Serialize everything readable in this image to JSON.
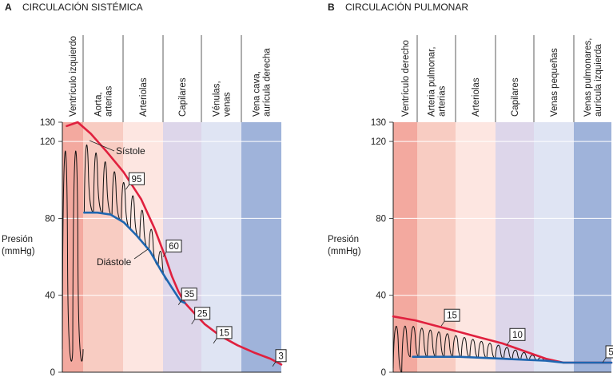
{
  "chart_data": [
    {
      "type": "line",
      "panel_letter": "A",
      "title": "CIRCULACIÓN SISTÉMICA",
      "ylabel": "Presión\n(mmHg)",
      "ylim": [
        0,
        130
      ],
      "y_ticks": [
        0,
        40,
        80,
        120,
        130
      ],
      "regions": [
        {
          "label": "Ventrículo izquierdo",
          "color": "#f3a99f"
        },
        {
          "label": "Aorta,\narterias",
          "color": "#f8ccc2"
        },
        {
          "label": "Arteriolas",
          "color": "#fde6e1"
        },
        {
          "label": "Capilares",
          "color": "#ddd6ea"
        },
        {
          "label": "Vénulas,\nvenas",
          "color": "#dfe4f3"
        },
        {
          "label": "Vena cava,\naurícula derecha",
          "color": "#9fb3da"
        }
      ],
      "curves": [
        {
          "name": "Sístole",
          "color": "#e0203e",
          "points": [
            [
              0.02,
              128
            ],
            [
              0.07,
              130
            ],
            [
              0.13,
              124
            ],
            [
              0.2,
              115
            ],
            [
              0.28,
              104
            ],
            [
              0.36,
              90
            ],
            [
              0.42,
              75
            ],
            [
              0.47,
              60
            ],
            [
              0.5,
              50
            ],
            [
              0.53,
              42
            ],
            [
              0.56,
              36
            ],
            [
              0.6,
              31
            ],
            [
              0.65,
              25
            ],
            [
              0.72,
              19
            ],
            [
              0.8,
              14
            ],
            [
              0.88,
              10
            ],
            [
              0.95,
              7
            ],
            [
              1.0,
              4
            ]
          ]
        },
        {
          "name": "Diástole",
          "color": "#1e66b0",
          "points": [
            [
              0.1,
              83
            ],
            [
              0.16,
              83
            ],
            [
              0.22,
              82
            ],
            [
              0.28,
              78
            ],
            [
              0.34,
              71
            ],
            [
              0.4,
              63
            ],
            [
              0.45,
              53
            ],
            [
              0.5,
              44
            ],
            [
              0.54,
              37
            ],
            [
              0.56,
              36
            ]
          ]
        }
      ],
      "annotations": [
        {
          "label": "95",
          "x": 0.29,
          "y": 95
        },
        {
          "label": "60",
          "x": 0.46,
          "y": 60
        },
        {
          "label": "35",
          "x": 0.53,
          "y": 35
        },
        {
          "label": "25",
          "x": 0.59,
          "y": 25
        },
        {
          "label": "15",
          "x": 0.69,
          "y": 15
        },
        {
          "label": "3",
          "x": 0.96,
          "y": 3
        }
      ]
    },
    {
      "type": "line",
      "panel_letter": "B",
      "title": "CIRCULACIÓN PULMONAR",
      "ylabel": "Presión\n(mmHg)",
      "ylim": [
        0,
        130
      ],
      "y_ticks": [
        0,
        40,
        80,
        120,
        130
      ],
      "regions": [
        {
          "label": "Ventrículo derecho",
          "color": "#f3a99f"
        },
        {
          "label": "Arteria pulmonar,\narterias",
          "color": "#f8ccc2"
        },
        {
          "label": "Arteriolas",
          "color": "#fde6e1"
        },
        {
          "label": "Capilares",
          "color": "#ddd6ea"
        },
        {
          "label": "Venas pequeñas",
          "color": "#dfe4f3"
        },
        {
          "label": "Venas pulmonares,\naurícula izquierda",
          "color": "#9fb3da"
        }
      ],
      "curves": [
        {
          "name": "",
          "color": "#e0203e",
          "points": [
            [
              0.0,
              29
            ],
            [
              0.1,
              27
            ],
            [
              0.2,
              24
            ],
            [
              0.3,
              21
            ],
            [
              0.4,
              18
            ],
            [
              0.5,
              15
            ],
            [
              0.6,
              11
            ],
            [
              0.7,
              7
            ],
            [
              0.78,
              5
            ],
            [
              0.9,
              5
            ],
            [
              1.0,
              5
            ]
          ]
        },
        {
          "name": "",
          "color": "#1e66b0",
          "points": [
            [
              0.09,
              8
            ],
            [
              0.3,
              8
            ],
            [
              0.5,
              7
            ],
            [
              0.7,
              6
            ],
            [
              0.78,
              5
            ],
            [
              1.0,
              5
            ]
          ]
        }
      ],
      "annotations": [
        {
          "label": "15",
          "x": 0.22,
          "y": 24
        },
        {
          "label": "10",
          "x": 0.52,
          "y": 14
        },
        {
          "label": "5",
          "x": 0.96,
          "y": 5
        }
      ]
    }
  ]
}
